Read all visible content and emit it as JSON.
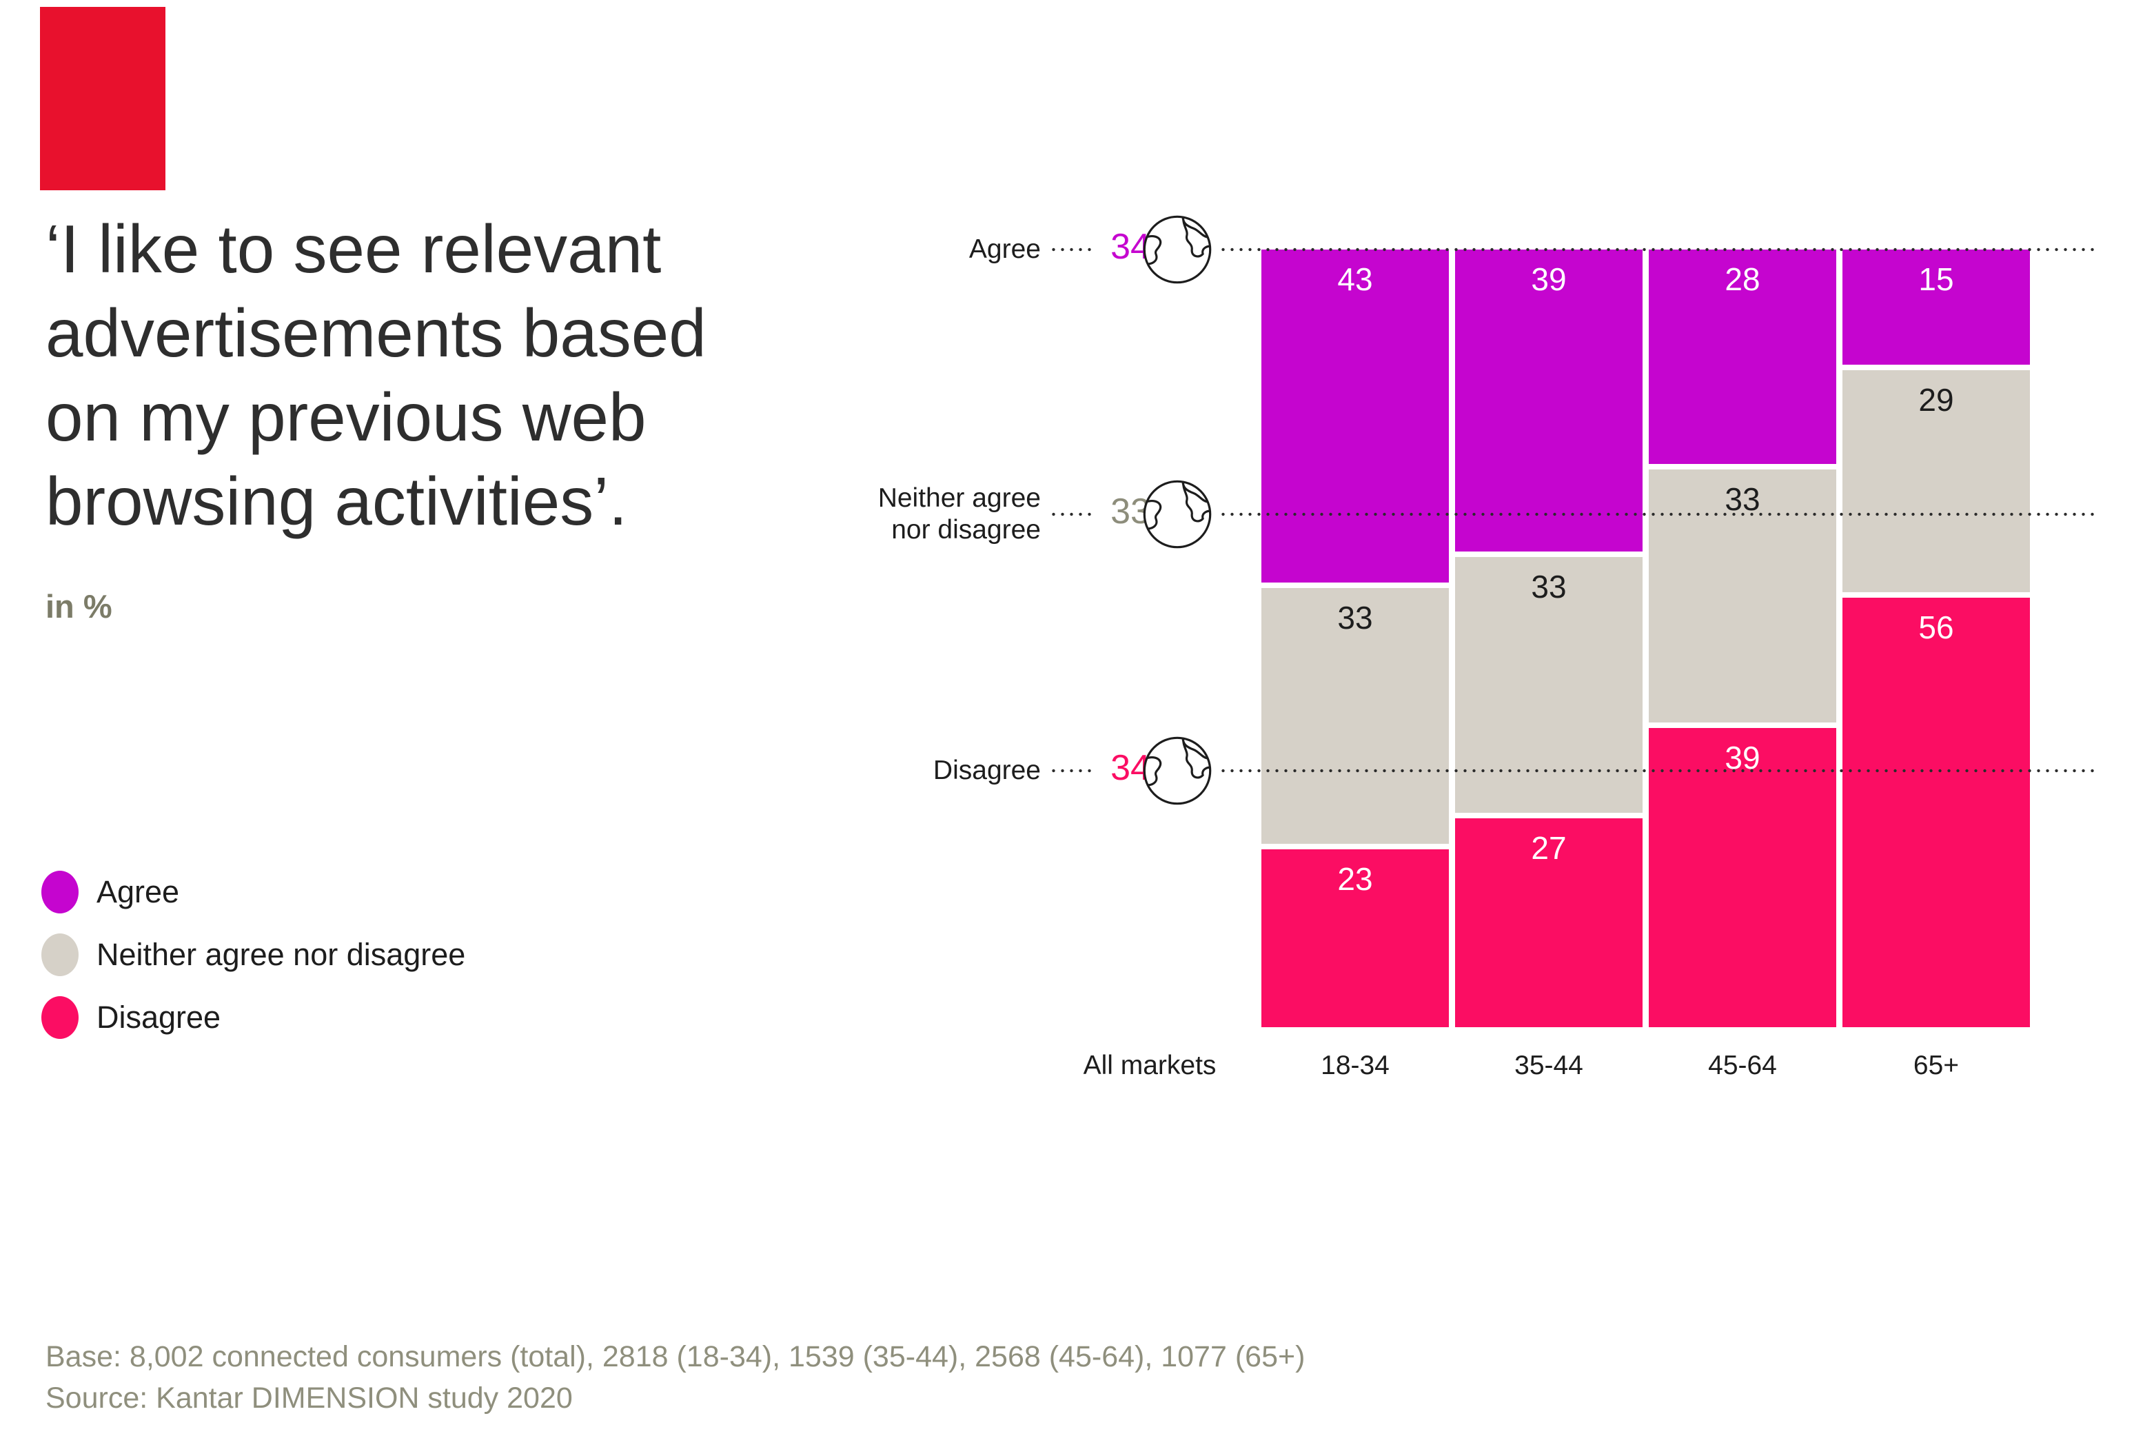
{
  "brand": {
    "logo_color": "#e8112d"
  },
  "title": {
    "lines": [
      "‘I like to see relevant",
      "advertisements based",
      "on my previous web",
      "browsing activities’."
    ],
    "full": "‘I like to see relevant advertisements based on my previous web browsing activities’."
  },
  "unit_label": "in %",
  "legend": [
    {
      "label": "Agree",
      "color": "#c505cf"
    },
    {
      "label": "Neither agree nor disagree",
      "color": "#d6d1c8"
    },
    {
      "label": "Disagree",
      "color": "#fb0d63"
    }
  ],
  "chart_data": {
    "type": "bar",
    "subtype": "stacked-100",
    "title": "‘I like to see relevant advertisements based on my previous web browsing activities’.",
    "unit": "%",
    "categories": [
      "All markets",
      "18-34",
      "35-44",
      "45-64",
      "65+"
    ],
    "series": [
      {
        "name": "Agree",
        "color": "#c505cf",
        "label_color": "#ffffff",
        "values": [
          34,
          43,
          39,
          28,
          15
        ]
      },
      {
        "name": "Neither agree nor disagree",
        "color": "#d6d1c8",
        "label_color": "#1d1d1d",
        "values": [
          33,
          33,
          33,
          33,
          29
        ]
      },
      {
        "name": "Disagree",
        "color": "#fb0d63",
        "label_color": "#ffffff",
        "values": [
          34,
          23,
          27,
          39,
          56
        ]
      }
    ],
    "all_markets_rows": [
      {
        "label_lines": [
          "Agree"
        ],
        "value": "34",
        "value_color": "#c505cf",
        "cum_percent": 0
      },
      {
        "label_lines": [
          "Neither agree",
          "nor disagree"
        ],
        "value": "33",
        "value_color": "#8d8d7b",
        "cum_percent": 34
      },
      {
        "label_lines": [
          "Disagree"
        ],
        "value": "34",
        "value_color": "#fb0d63",
        "cum_percent": 67
      }
    ],
    "legend_position": "left",
    "value_labels": "inside-top",
    "grid": "dotted-guides",
    "ylim": [
      0,
      100
    ]
  },
  "axis": {
    "category_labels": [
      "All markets",
      "18-34",
      "35-44",
      "45-64",
      "65+"
    ]
  },
  "footer": {
    "base": "Base: 8,002 connected consumers (total), 2818 (18-34), 1539 (35-44), 2568 (45-64), 1077 (65+)",
    "source": "Source: Kantar DIMENSION study 2020"
  }
}
